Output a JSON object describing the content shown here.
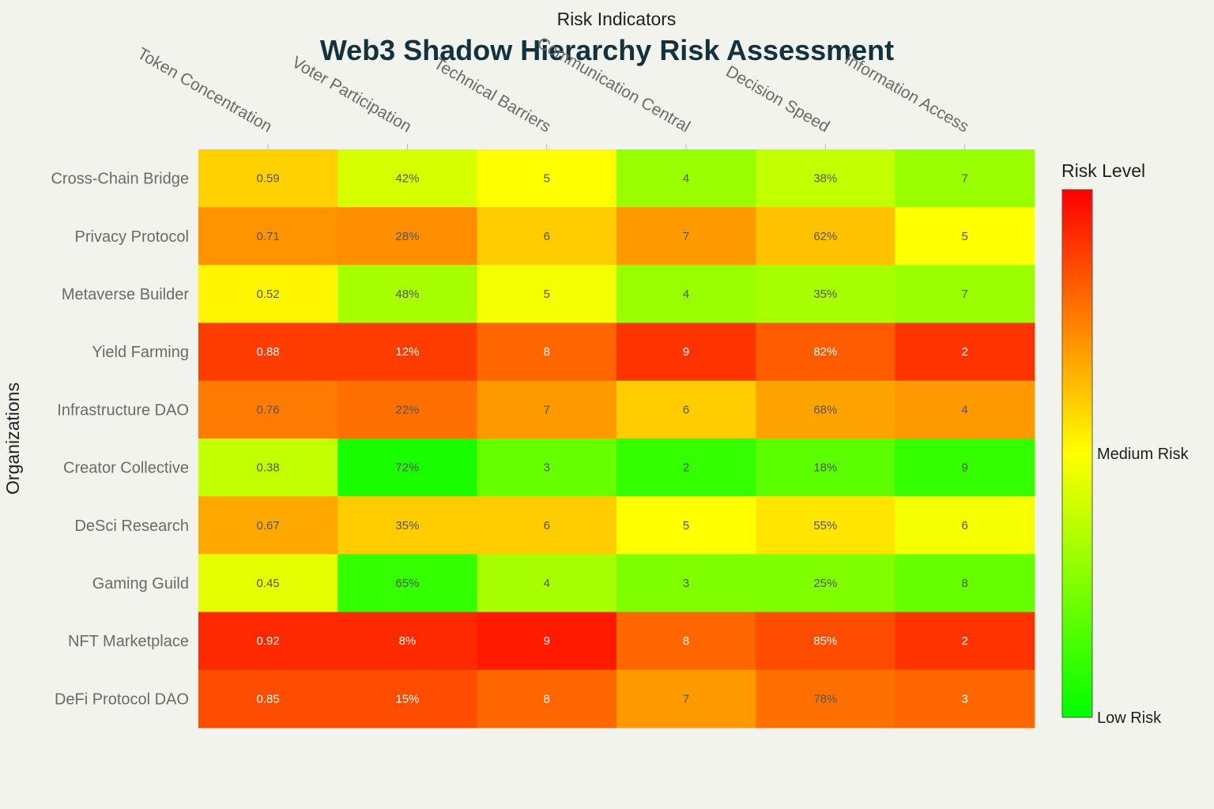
{
  "chart_data": {
    "type": "heatmap",
    "title": "Web3 Shadow Hierarchy Risk Assessment",
    "xlabel": "Risk Indicators",
    "ylabel": "Organizations",
    "columns": [
      "Token Concentration",
      "Voter Participation",
      "Technical Barriers",
      "Communication Central",
      "Decision Speed",
      "Information Access"
    ],
    "rows": [
      "Cross-Chain Bridge",
      "Privacy Protocol",
      "Metaverse Builder",
      "Yield Farming",
      "Infrastructure DAO",
      "Creator Collective",
      "DeSci Research",
      "Gaming Guild",
      "NFT Marketplace",
      "DeFi Protocol DAO"
    ],
    "cell_labels": [
      [
        "0.59",
        "42%",
        "5",
        "4",
        "38%",
        "7"
      ],
      [
        "0.71",
        "28%",
        "6",
        "7",
        "62%",
        "5"
      ],
      [
        "0.52",
        "48%",
        "5",
        "4",
        "35%",
        "7"
      ],
      [
        "0.88",
        "12%",
        "8",
        "9",
        "82%",
        "2"
      ],
      [
        "0.76",
        "22%",
        "7",
        "6",
        "68%",
        "4"
      ],
      [
        "0.38",
        "72%",
        "3",
        "2",
        "18%",
        "9"
      ],
      [
        "0.67",
        "35%",
        "6",
        "5",
        "55%",
        "6"
      ],
      [
        "0.45",
        "65%",
        "4",
        "3",
        "25%",
        "8"
      ],
      [
        "0.92",
        "8%",
        "9",
        "8",
        "85%",
        "2"
      ],
      [
        "0.85",
        "15%",
        "8",
        "7",
        "78%",
        "3"
      ]
    ],
    "risk_scores": [
      [
        0.59,
        0.42,
        0.5,
        0.3,
        0.38,
        0.3
      ],
      [
        0.71,
        0.72,
        0.6,
        0.7,
        0.62,
        0.5
      ],
      [
        0.52,
        0.33,
        0.48,
        0.3,
        0.33,
        0.3
      ],
      [
        0.88,
        0.88,
        0.8,
        0.9,
        0.82,
        0.9
      ],
      [
        0.76,
        0.78,
        0.7,
        0.6,
        0.68,
        0.7
      ],
      [
        0.38,
        0.05,
        0.2,
        0.1,
        0.18,
        0.1
      ],
      [
        0.67,
        0.6,
        0.6,
        0.5,
        0.55,
        0.48
      ],
      [
        0.45,
        0.1,
        0.33,
        0.25,
        0.25,
        0.2
      ],
      [
        0.92,
        0.92,
        0.95,
        0.8,
        0.85,
        0.9
      ],
      [
        0.85,
        0.85,
        0.8,
        0.7,
        0.78,
        0.8
      ]
    ],
    "colorscale": [
      "#00ff00",
      "#ffff00",
      "#ff0000"
    ],
    "colorbar": {
      "title": "Risk Level",
      "ticks": [
        {
          "value": 0,
          "label": "Low Risk"
        },
        {
          "value": 0.5,
          "label": "Medium Risk"
        }
      ]
    }
  }
}
